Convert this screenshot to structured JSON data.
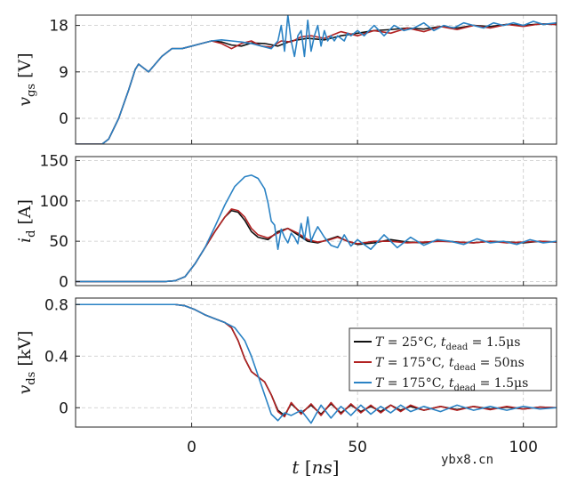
{
  "chart_data": {
    "type": "line",
    "xlabel": "t [ns]",
    "xlim": [
      -35,
      110
    ],
    "xticks": [
      0,
      50,
      100
    ],
    "colors": [
      "#111111",
      "#b22222",
      "#2a82c4"
    ],
    "legend": {
      "placement": "bottom-right of bottom panel",
      "entries": [
        "T = 25°C, tdead = 1.5μs",
        "T = 175°C, tdead = 50ns",
        "T = 175°C, tdead = 1.5μs"
      ]
    },
    "panels": [
      {
        "ylabel": "vgs [V]",
        "ylim": [
          -5,
          20
        ],
        "yticks": [
          "0",
          "9",
          "18"
        ],
        "yticks_values": [
          0,
          9,
          18
        ],
        "series": [
          {
            "name": "T = 25°C, tdead = 1.5μs",
            "x": [
              -35,
              -27,
              -25,
              -22,
              -19,
              -17,
              -16,
              -15,
              -13,
              -11,
              -9,
              -6,
              -3,
              0,
              3,
              6,
              9,
              12,
              15,
              18,
              22,
              26,
              30,
              35,
              40,
              45,
              50,
              55,
              60,
              65,
              70,
              75,
              80,
              85,
              90,
              95,
              100,
              105,
              110
            ],
            "y": [
              -5,
              -5,
              -4,
              0,
              5.5,
              9.5,
              10.5,
              10,
              9,
              10.5,
              12,
              13.5,
              13.5,
              14,
              14.5,
              15,
              14.8,
              14.2,
              14,
              14.6,
              14.5,
              14,
              15,
              15.5,
              15.2,
              16,
              16.5,
              17,
              17.2,
              17.5,
              17.3,
              17.8,
              17.5,
              18,
              17.8,
              18.2,
              18,
              18.3,
              18.2
            ]
          },
          {
            "name": "T = 175°C, tdead = 50ns",
            "x": [
              -35,
              -27,
              -25,
              -22,
              -19,
              -17,
              -16,
              -15,
              -13,
              -11,
              -9,
              -6,
              -3,
              0,
              3,
              6,
              9,
              12,
              15,
              18,
              21,
              24,
              27,
              30,
              33,
              36,
              40,
              45,
              50,
              55,
              60,
              65,
              70,
              75,
              80,
              85,
              90,
              95,
              100,
              105,
              110
            ],
            "y": [
              -5,
              -5,
              -4,
              0,
              5.5,
              9.5,
              10.5,
              10,
              9,
              10.5,
              12,
              13.5,
              13.5,
              14,
              14.5,
              15,
              14.5,
              13.5,
              14.5,
              15,
              14,
              13.8,
              15,
              14.8,
              15.8,
              16,
              15.5,
              16.8,
              16,
              17,
              16.5,
              17.5,
              16.8,
              17.8,
              17.2,
              18,
              17.5,
              18.2,
              17.8,
              18.3,
              18.2
            ]
          },
          {
            "name": "T = 175°C, tdead = 1.5μs",
            "x": [
              -35,
              -27,
              -25,
              -22,
              -19,
              -17,
              -16,
              -15,
              -13,
              -11,
              -9,
              -6,
              -3,
              0,
              3,
              6,
              9,
              12,
              15,
              18,
              21,
              24,
              26,
              27,
              28,
              29,
              30,
              31,
              32,
              33,
              34,
              35,
              36,
              37,
              38,
              39,
              40,
              41,
              42,
              43,
              44,
              45,
              46,
              47,
              48,
              50,
              52,
              55,
              58,
              61,
              64,
              67,
              70,
              73,
              76,
              79,
              82,
              85,
              88,
              91,
              94,
              97,
              100,
              103,
              106,
              110
            ],
            "y": [
              -5,
              -5,
              -4,
              0,
              5.5,
              9.5,
              10.5,
              10,
              9,
              10.5,
              12,
              13.5,
              13.5,
              14,
              14.5,
              15,
              15.2,
              15,
              14.8,
              14.5,
              14,
              13.5,
              15,
              18,
              13,
              20,
              15,
              12,
              16,
              17,
              12,
              19,
              13,
              16,
              18,
              14,
              17,
              15,
              16,
              15,
              16,
              15.5,
              15,
              16.5,
              16,
              17,
              16,
              18,
              16,
              18,
              17,
              17.5,
              18.5,
              17,
              18,
              17.5,
              18.5,
              18,
              17.5,
              18.5,
              18,
              18.5,
              18,
              18.8,
              18.2,
              18.5
            ]
          }
        ]
      },
      {
        "ylabel": "id [A]",
        "ylim": [
          -5,
          155
        ],
        "yticks": [
          "0",
          "50",
          "100",
          "150"
        ],
        "yticks_values": [
          0,
          50,
          100,
          150
        ],
        "series": [
          {
            "name": "T = 25°C, tdead = 1.5μs",
            "x": [
              -35,
              -8,
              -5,
              -2,
              1,
              4,
              7,
              10,
              12,
              14,
              16,
              18,
              20,
              23,
              26,
              29,
              32,
              35,
              38,
              41,
              44,
              47,
              50,
              55,
              60,
              65,
              70,
              75,
              80,
              85,
              90,
              95,
              100,
              105,
              110
            ],
            "y": [
              0,
              0,
              1,
              6,
              22,
              42,
              62,
              80,
              88,
              86,
              76,
              62,
              55,
              52,
              62,
              66,
              58,
              50,
              48,
              52,
              56,
              50,
              46,
              48,
              52,
              49,
              48,
              51,
              49,
              48,
              50,
              49,
              48,
              50,
              49
            ]
          },
          {
            "name": "T = 175°C, tdead = 50ns",
            "x": [
              -35,
              -8,
              -5,
              -2,
              1,
              4,
              7,
              10,
              12,
              14,
              16,
              18,
              20,
              23,
              26,
              29,
              32,
              35,
              38,
              41,
              44,
              47,
              50,
              55,
              60,
              65,
              70,
              75,
              80,
              85,
              90,
              95,
              100,
              105,
              110
            ],
            "y": [
              0,
              0,
              1,
              6,
              22,
              42,
              62,
              80,
              90,
              88,
              80,
              66,
              58,
              54,
              60,
              66,
              60,
              52,
              49,
              51,
              55,
              50,
              47,
              50,
              50,
              48,
              49,
              50,
              49,
              48,
              50,
              48,
              49,
              50,
              49
            ]
          },
          {
            "name": "T = 175°C, tdead = 1.5μs",
            "x": [
              -35,
              -8,
              -5,
              -2,
              1,
              4,
              7,
              10,
              13,
              16,
              18,
              20,
              22,
              23,
              24,
              25,
              26,
              27,
              28,
              29,
              30,
              31,
              32,
              33,
              34,
              35,
              36,
              37,
              38,
              40,
              42,
              44,
              46,
              48,
              50,
              54,
              58,
              62,
              66,
              70,
              74,
              78,
              82,
              86,
              90,
              94,
              98,
              102,
              106,
              110
            ],
            "y": [
              0,
              0,
              1,
              6,
              22,
              42,
              68,
              95,
              118,
              130,
              132,
              128,
              115,
              98,
              75,
              70,
              40,
              65,
              55,
              48,
              60,
              55,
              47,
              72,
              52,
              80,
              50,
              60,
              68,
              55,
              45,
              42,
              58,
              44,
              52,
              40,
              58,
              42,
              55,
              45,
              52,
              50,
              46,
              53,
              48,
              50,
              46,
              52,
              48,
              50
            ]
          }
        ]
      },
      {
        "ylabel": "vds [kV]",
        "ylim": [
          -0.15,
          0.85
        ],
        "yticks": [
          "0",
          "0.4",
          "0.8"
        ],
        "yticks_values": [
          0,
          0.4,
          0.8
        ],
        "series": [
          {
            "name": "T = 25°C, tdead = 1.5μs",
            "x": [
              -35,
              -5,
              -2,
              1,
              4,
              7,
              10,
              12,
              14,
              16,
              18,
              20,
              22,
              24,
              26,
              28,
              30,
              33,
              36,
              39,
              42,
              45,
              48,
              51,
              54,
              57,
              60,
              63,
              66,
              70,
              75,
              80,
              85,
              90,
              95,
              100,
              105,
              110
            ],
            "y": [
              0.8,
              0.8,
              0.79,
              0.76,
              0.72,
              0.69,
              0.66,
              0.62,
              0.52,
              0.38,
              0.28,
              0.24,
              0.2,
              0.1,
              -0.02,
              -0.06,
              0.03,
              -0.04,
              0.02,
              -0.05,
              0.03,
              -0.04,
              0.02,
              -0.03,
              0.01,
              -0.03,
              0.02,
              -0.02,
              0.01,
              -0.02,
              0.01,
              -0.015,
              0.01,
              -0.01,
              0.005,
              -0.01,
              0.005,
              0
            ]
          },
          {
            "name": "T = 175°C, tdead = 50ns",
            "x": [
              -35,
              -5,
              -2,
              1,
              4,
              7,
              10,
              12,
              14,
              16,
              18,
              20,
              22,
              24,
              26,
              28,
              30,
              33,
              36,
              39,
              42,
              45,
              48,
              51,
              54,
              57,
              60,
              63,
              66,
              70,
              75,
              80,
              85,
              90,
              95,
              100,
              105,
              110
            ],
            "y": [
              0.8,
              0.8,
              0.79,
              0.76,
              0.72,
              0.69,
              0.66,
              0.62,
              0.52,
              0.38,
              0.28,
              0.24,
              0.2,
              0.1,
              -0.03,
              -0.07,
              0.04,
              -0.05,
              0.03,
              -0.06,
              0.04,
              -0.05,
              0.03,
              -0.04,
              0.02,
              -0.04,
              0.02,
              -0.03,
              0.02,
              -0.02,
              0.01,
              -0.02,
              0.01,
              -0.015,
              0.01,
              -0.01,
              0.005,
              0
            ]
          },
          {
            "name": "T = 175°C, tdead = 1.5μs",
            "x": [
              -35,
              -5,
              -2,
              1,
              4,
              7,
              10,
              13,
              16,
              18,
              20,
              22,
              24,
              26,
              28,
              30,
              33,
              36,
              39,
              42,
              45,
              48,
              51,
              54,
              57,
              60,
              63,
              66,
              70,
              75,
              80,
              85,
              90,
              95,
              100,
              105,
              110
            ],
            "y": [
              0.8,
              0.8,
              0.79,
              0.76,
              0.72,
              0.69,
              0.66,
              0.62,
              0.52,
              0.4,
              0.25,
              0.1,
              -0.05,
              -0.1,
              -0.04,
              -0.06,
              -0.02,
              -0.12,
              0.02,
              -0.08,
              0.01,
              -0.06,
              0.02,
              -0.05,
              0.01,
              -0.04,
              0.02,
              -0.03,
              0.01,
              -0.03,
              0.02,
              -0.02,
              0.01,
              -0.02,
              0.01,
              -0.01,
              0
            ]
          }
        ]
      }
    ]
  },
  "watermark": "ybx8.cn"
}
